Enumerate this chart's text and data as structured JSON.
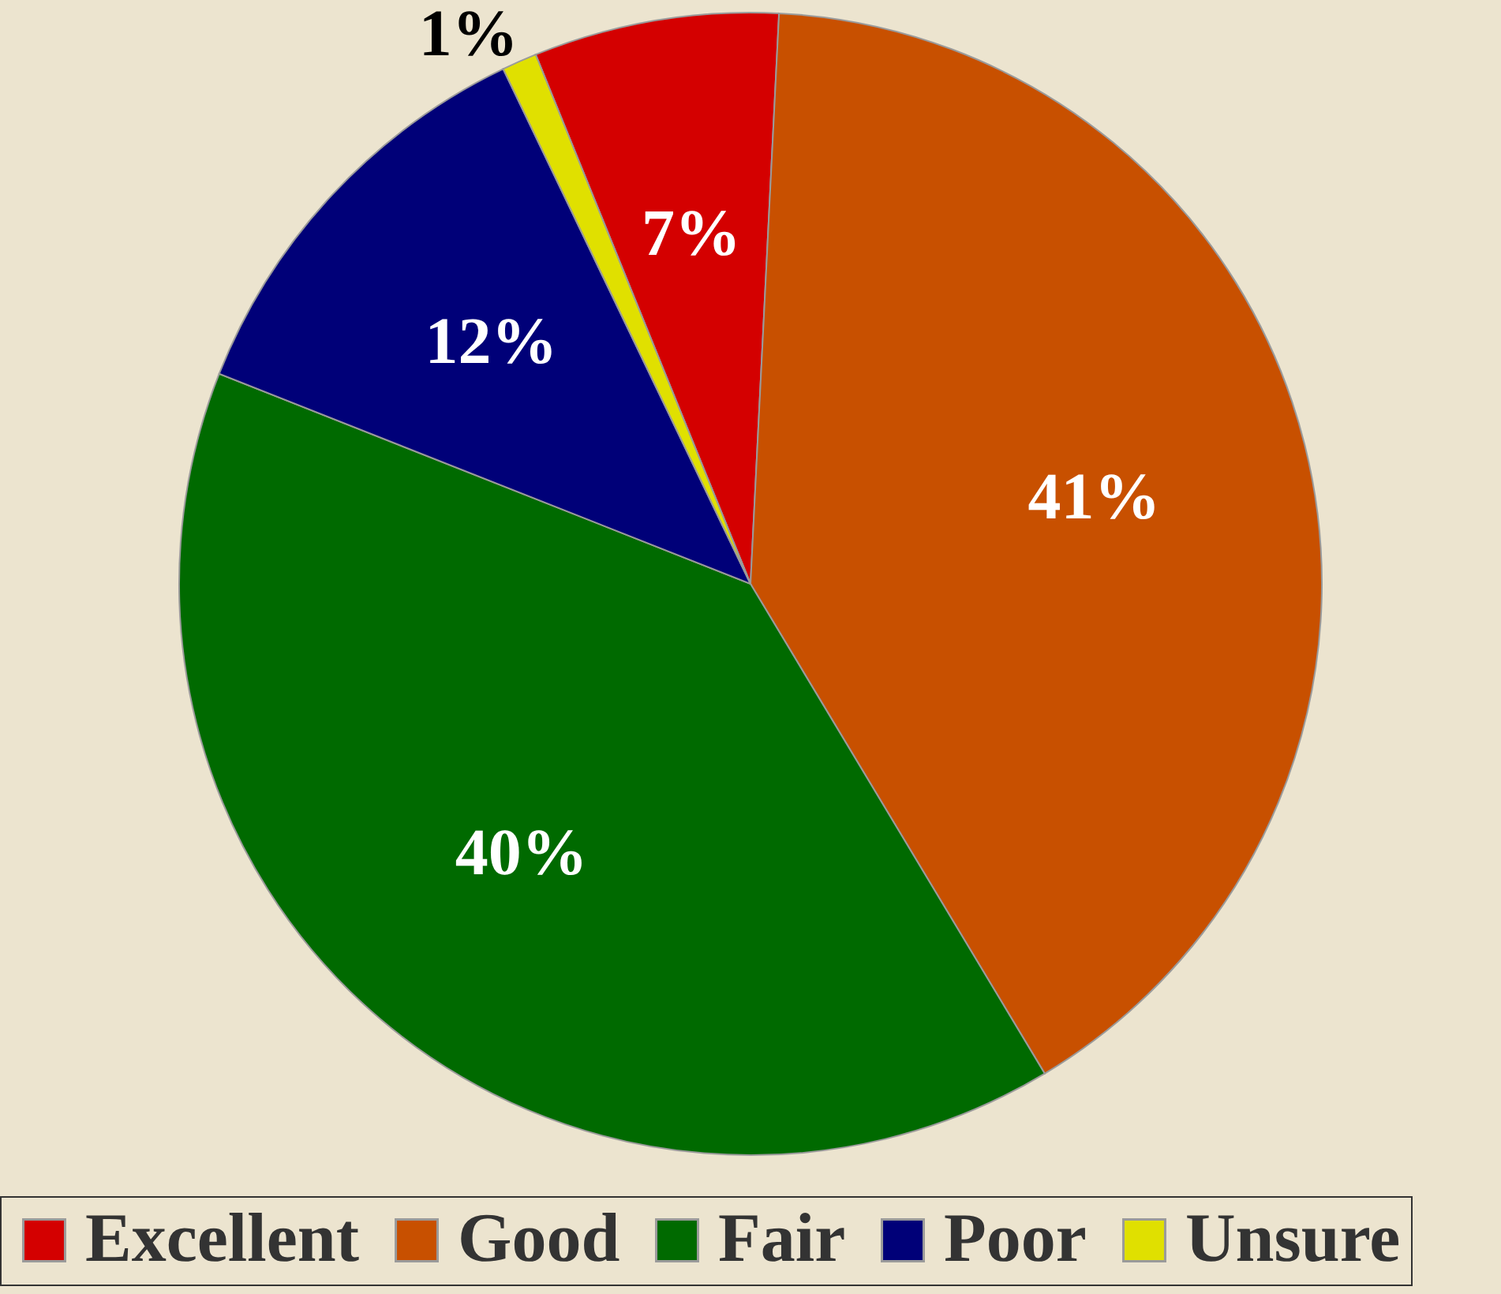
{
  "chart_data": {
    "type": "pie",
    "categories": [
      "Excellent",
      "Good",
      "Fair",
      "Poor",
      "Unsure"
    ],
    "values": [
      7,
      41,
      40,
      12,
      1
    ],
    "colors": [
      "#d40000",
      "#c85000",
      "#006a00",
      "#000078",
      "#e0e000"
    ],
    "value_labels": [
      "7%",
      "41%",
      "40%",
      "12%",
      "1%"
    ],
    "legend": "bottom"
  }
}
